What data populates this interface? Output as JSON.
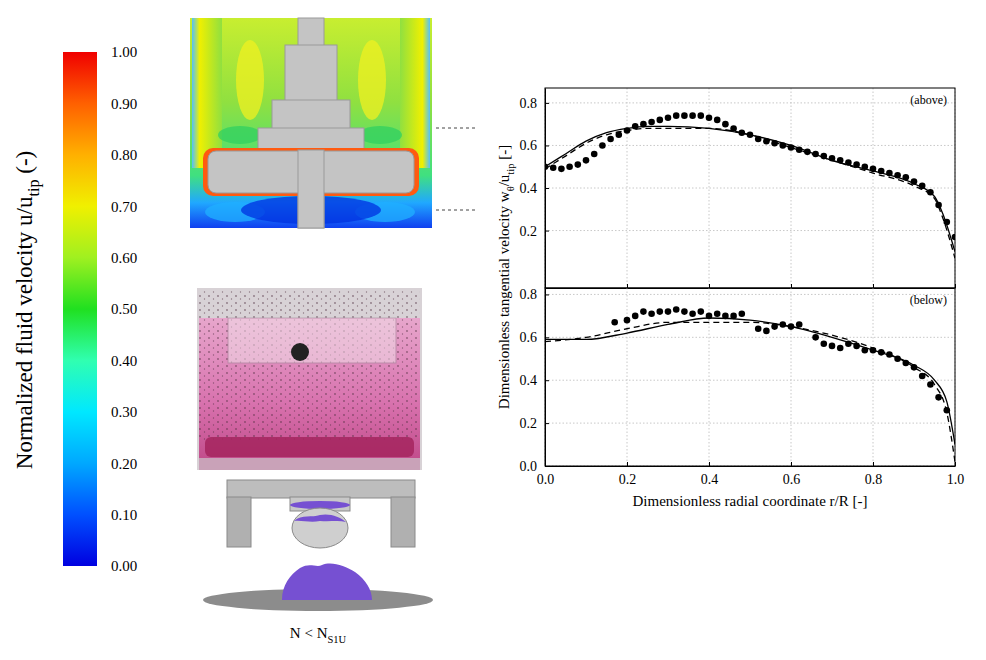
{
  "chart_data": [
    {
      "type": "colorbar",
      "title": [
        {
          "text": "Normalized fluid velocity u/u"
        },
        {
          "text": "tip",
          "sub": true
        },
        {
          "text": " (-)"
        }
      ],
      "ylim": [
        0,
        1
      ],
      "yticks": [
        {
          "value": 0,
          "label": "0.00"
        },
        {
          "value": 0.1,
          "label": "0.10"
        },
        {
          "value": 0.2,
          "label": "0.20"
        },
        {
          "value": 0.3,
          "label": "0.30"
        },
        {
          "value": 0.4,
          "label": "0.40"
        },
        {
          "value": 0.5,
          "label": "0.50"
        },
        {
          "value": 0.6,
          "label": "0.60"
        },
        {
          "value": 0.7,
          "label": "0.70"
        },
        {
          "value": 0.8,
          "label": "0.80"
        },
        {
          "value": 0.9,
          "label": "0.90"
        },
        {
          "value": 1,
          "label": "1.00"
        }
      ]
    },
    {
      "type": "line",
      "annotation": "(above)",
      "ylabel": [
        {
          "text": "Dimensionless tangential velocity w"
        },
        {
          "text": "θ",
          "sub": true
        },
        {
          "text": "/u"
        },
        {
          "text": "tip",
          "sub": true
        },
        {
          "text": " [-]"
        }
      ],
      "xlim": [
        0,
        1
      ],
      "xticks": [
        {
          "value": 0,
          "label": "0.0"
        },
        0.2,
        0.4,
        0.6,
        0.8,
        {
          "value": 1,
          "label": "1.0"
        }
      ],
      "ylim": [
        -0.07,
        0.87
      ],
      "yticks": [
        0.2,
        0.4,
        0.6,
        0.8
      ],
      "grid": true,
      "tick_labels": "y",
      "series": [
        {
          "type": "scatter",
          "marker": "circle",
          "color": "#000000",
          "x": [
            0,
            0.02,
            0.04,
            0.06,
            0.08,
            0.1,
            0.12,
            0.14,
            0.16,
            0.18,
            0.2,
            0.22,
            0.24,
            0.26,
            0.28,
            0.3,
            0.32,
            0.34,
            0.36,
            0.38,
            0.4,
            0.42,
            0.44,
            0.46,
            0.48,
            0.5,
            0.52,
            0.54,
            0.56,
            0.58,
            0.6,
            0.62,
            0.64,
            0.66,
            0.68,
            0.7,
            0.72,
            0.74,
            0.76,
            0.78,
            0.8,
            0.82,
            0.84,
            0.86,
            0.88,
            0.9,
            0.92,
            0.94,
            0.96,
            0.98,
            1
          ],
          "values": [
            0.5,
            0.495,
            0.49,
            0.5,
            0.51,
            0.53,
            0.56,
            0.6,
            0.63,
            0.65,
            0.67,
            0.69,
            0.7,
            0.71,
            0.72,
            0.73,
            0.74,
            0.74,
            0.74,
            0.74,
            0.73,
            0.72,
            0.7,
            0.68,
            0.66,
            0.65,
            0.63,
            0.62,
            0.61,
            0.6,
            0.59,
            0.58,
            0.57,
            0.56,
            0.55,
            0.54,
            0.53,
            0.52,
            0.51,
            0.5,
            0.49,
            0.48,
            0.47,
            0.46,
            0.45,
            0.43,
            0.41,
            0.38,
            0.32,
            0.24,
            0.17
          ]
        },
        {
          "type": "line",
          "line_style": "solid",
          "color": "#000000",
          "x": [
            0,
            0.05,
            0.1,
            0.15,
            0.2,
            0.25,
            0.3,
            0.4,
            0.5,
            0.6,
            0.7,
            0.8,
            0.9,
            0.95,
            0.97,
            1
          ],
          "values": [
            0.5,
            0.56,
            0.62,
            0.66,
            0.68,
            0.69,
            0.69,
            0.68,
            0.65,
            0.6,
            0.53,
            0.48,
            0.42,
            0.36,
            0.28,
            0.1
          ]
        },
        {
          "type": "line",
          "line_style": "dashed",
          "color": "#000000",
          "x": [
            0,
            0.05,
            0.1,
            0.15,
            0.2,
            0.25,
            0.3,
            0.4,
            0.5,
            0.6,
            0.7,
            0.8,
            0.9,
            0.95,
            0.97,
            1
          ],
          "values": [
            0.49,
            0.55,
            0.61,
            0.65,
            0.67,
            0.68,
            0.68,
            0.68,
            0.65,
            0.59,
            0.53,
            0.47,
            0.41,
            0.35,
            0.26,
            0.07
          ]
        }
      ]
    },
    {
      "type": "line",
      "annotation": "(below)",
      "xlabel": "Dimensionless radial coordinate r/R [-]",
      "xlim": [
        0,
        1
      ],
      "xticks": [
        {
          "value": 0,
          "label": "0.0"
        },
        0.2,
        0.4,
        0.6,
        0.8,
        {
          "value": 1,
          "label": "1.0"
        }
      ],
      "ylim": [
        0,
        0.83
      ],
      "yticks": [
        {
          "value": 0,
          "label": "0.0"
        },
        0.2,
        0.4,
        0.6,
        0.8
      ],
      "grid": true,
      "series": [
        {
          "type": "scatter",
          "marker": "circle",
          "color": "#000000",
          "x": [
            0.17,
            0.2,
            0.22,
            0.24,
            0.26,
            0.28,
            0.3,
            0.32,
            0.34,
            0.36,
            0.38,
            0.4,
            0.42,
            0.44,
            0.46,
            0.48,
            0.52,
            0.54,
            0.56,
            0.58,
            0.6,
            0.62,
            0.66,
            0.68,
            0.7,
            0.72,
            0.74,
            0.76,
            0.78,
            0.8,
            0.82,
            0.84,
            0.86,
            0.88,
            0.9,
            0.92,
            0.94,
            0.96,
            0.98
          ],
          "values": [
            0.67,
            0.68,
            0.7,
            0.72,
            0.71,
            0.72,
            0.72,
            0.73,
            0.72,
            0.71,
            0.72,
            0.7,
            0.71,
            0.7,
            0.7,
            0.71,
            0.64,
            0.63,
            0.65,
            0.66,
            0.65,
            0.66,
            0.6,
            0.57,
            0.56,
            0.55,
            0.57,
            0.56,
            0.54,
            0.54,
            0.53,
            0.52,
            0.5,
            0.48,
            0.46,
            0.42,
            0.38,
            0.32,
            0.26
          ]
        },
        {
          "type": "line",
          "line_style": "solid",
          "color": "#000000",
          "x": [
            0,
            0.1,
            0.2,
            0.3,
            0.4,
            0.5,
            0.6,
            0.7,
            0.8,
            0.9,
            0.95,
            0.98,
            1
          ],
          "values": [
            0.59,
            0.59,
            0.62,
            0.66,
            0.69,
            0.68,
            0.65,
            0.6,
            0.54,
            0.47,
            0.4,
            0.3,
            0.1
          ]
        },
        {
          "type": "line",
          "line_style": "dashed",
          "color": "#000000",
          "x": [
            0,
            0.1,
            0.2,
            0.3,
            0.4,
            0.5,
            0.6,
            0.7,
            0.8,
            0.9,
            0.95,
            0.98,
            1
          ],
          "values": [
            0.58,
            0.6,
            0.64,
            0.67,
            0.67,
            0.67,
            0.65,
            0.61,
            0.55,
            0.46,
            0.38,
            0.25,
            0.02
          ]
        }
      ]
    }
  ],
  "caption": [
    {
      "text": "N < N"
    },
    {
      "text": "S1U",
      "sub": true
    }
  ]
}
